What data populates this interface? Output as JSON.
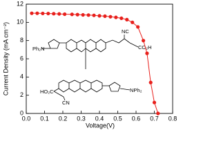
{
  "chart_data": {
    "type": "line",
    "x_label": "Voltage(V)",
    "y_label": "Current Density (mA cm⁻²)",
    "xlim": [
      0,
      0.8
    ],
    "xticks": [
      {
        "value": 0,
        "label": "0.0"
      },
      0.1,
      0.2,
      0.3,
      0.4,
      0.5,
      0.6,
      0.7,
      0.8
    ],
    "ylim": [
      0,
      12
    ],
    "yticks": [
      0,
      2,
      4,
      6,
      8,
      10,
      12
    ],
    "series": [
      {
        "color": "#e8201c",
        "x": [
          0.03,
          0.06,
          0.09,
          0.12,
          0.15,
          0.18,
          0.21,
          0.25,
          0.28,
          0.31,
          0.34,
          0.37,
          0.4,
          0.43,
          0.46,
          0.49,
          0.52,
          0.55,
          0.58,
          0.61,
          0.64,
          0.66,
          0.68,
          0.7,
          0.72
        ],
        "values": [
          11.0,
          11.0,
          10.98,
          10.97,
          10.95,
          10.93,
          10.9,
          10.88,
          10.85,
          10.82,
          10.8,
          10.77,
          10.72,
          10.68,
          10.62,
          10.55,
          10.45,
          10.3,
          10.0,
          9.5,
          8.0,
          6.6,
          3.4,
          1.2,
          0
        ]
      }
    ],
    "structure_labels": [
      "Ph₂N",
      "NC",
      "CO₂H",
      "HO₂C",
      "CN",
      "NPh₂"
    ]
  }
}
